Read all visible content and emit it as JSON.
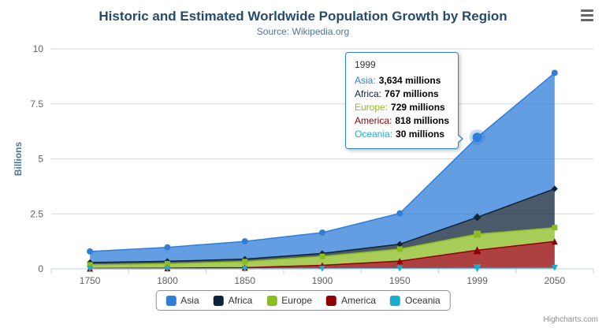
{
  "page": {
    "credits": "Highcharts.com"
  },
  "chart_data": {
    "type": "area",
    "stacking": "normal",
    "stack_order": "first_series_on_top",
    "title": "Historic and Estimated Worldwide Population Growth by Region",
    "subtitle": "Source: Wikipedia.org",
    "xlabel": "",
    "ylabel": "Billions",
    "ylim": [
      0,
      10
    ],
    "yticks": [
      0,
      2.5,
      5,
      7.5,
      10
    ],
    "ytick_labels": [
      "0",
      "2.5",
      "5",
      "7.5",
      "10"
    ],
    "categories": [
      "1750",
      "1800",
      "1850",
      "1900",
      "1950",
      "1999",
      "2050"
    ],
    "values_unit": "millions",
    "yaxis_unit": "billions",
    "grid": "horizontal",
    "legend_position": "bottom-center",
    "series": [
      {
        "name": "Asia",
        "color": "#2f7ed8",
        "marker": "circle",
        "values": [
          502,
          635,
          809,
          947,
          1402,
          3634,
          5268
        ]
      },
      {
        "name": "Africa",
        "color": "#0d233a",
        "marker": "diamond",
        "values": [
          106,
          107,
          111,
          133,
          221,
          767,
          1766
        ]
      },
      {
        "name": "Europe",
        "color": "#8bbc21",
        "marker": "square",
        "values": [
          163,
          203,
          276,
          408,
          547,
          729,
          628
        ]
      },
      {
        "name": "America",
        "color": "#910000",
        "marker": "triangle",
        "values": [
          18,
          31,
          54,
          156,
          339,
          818,
          1201
        ]
      },
      {
        "name": "Oceania",
        "color": "#1aadce",
        "marker": "triangle-down",
        "values": [
          2,
          2,
          2,
          6,
          13,
          30,
          46
        ]
      }
    ]
  },
  "tooltip": {
    "header": "1999",
    "rows": [
      {
        "label": "Asia:",
        "value": "3,634 millions"
      },
      {
        "label": "Africa:",
        "value": "767 millions"
      },
      {
        "label": "Europe:",
        "value": "729 millions"
      },
      {
        "label": "America:",
        "value": "818 millions"
      },
      {
        "label": "Oceania:",
        "value": "30 millions"
      }
    ]
  },
  "colors": {
    "title_color": "#274b6d",
    "subtitle_color": "#4d759e",
    "axis_label": "#606060",
    "axis_title": "#4d759e",
    "grid_line": "#d8d8d8",
    "axis_line": "#c0d0e0",
    "tooltip_border": "#2f7ed8",
    "legend_border": "#909090",
    "legend_text": "#333333",
    "credits_color": "#909090",
    "menu_icon": "#666666"
  }
}
